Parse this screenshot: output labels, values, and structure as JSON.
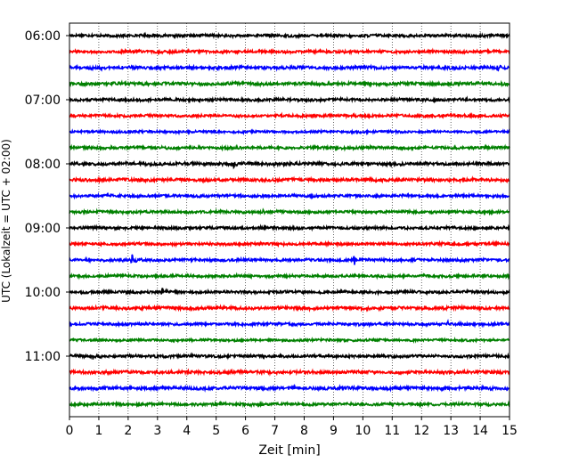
{
  "chart_data": {
    "type": "line",
    "title": "",
    "xlabel": "Zeit  [min]",
    "ylabel": "UTC (Lokalzeit = UTC + 02:00)",
    "xlim": [
      0,
      15
    ],
    "x_ticks": [
      "0",
      "1",
      "2",
      "3",
      "4",
      "5",
      "6",
      "7",
      "8",
      "9",
      "10",
      "11",
      "12",
      "13",
      "14",
      "15"
    ],
    "y_ticks": [
      "06:00",
      "07:00",
      "08:00",
      "09:00",
      "10:00",
      "11:00"
    ],
    "grid": "vertical dotted lines at each minute",
    "trace_interval_minutes": 15,
    "trace_colors": [
      "#000000",
      "#ff0000",
      "#0000ff",
      "#008000"
    ],
    "traces": [
      {
        "start": "06:00",
        "color": "#000000",
        "noise": 0.7,
        "events": [
          {
            "t": 14.1,
            "amp": 0.4
          }
        ]
      },
      {
        "start": "06:15",
        "color": "#ff0000",
        "noise": 0.7,
        "events": [
          {
            "t": 9.9,
            "amp": 0.3
          }
        ]
      },
      {
        "start": "06:30",
        "color": "#0000ff",
        "noise": 0.8,
        "events": [
          {
            "t": 14.6,
            "amp": 1.0
          }
        ]
      },
      {
        "start": "06:45",
        "color": "#008000",
        "noise": 0.8,
        "events": [
          {
            "t": 10.2,
            "amp": 0.4
          }
        ]
      },
      {
        "start": "07:00",
        "color": "#000000",
        "noise": 0.7,
        "events": [
          {
            "t": 2.2,
            "amp": 0.3
          }
        ]
      },
      {
        "start": "07:15",
        "color": "#ff0000",
        "noise": 0.7,
        "events": [
          {
            "t": 1.1,
            "amp": 0.3
          }
        ]
      },
      {
        "start": "07:30",
        "color": "#0000ff",
        "noise": 0.6,
        "events": []
      },
      {
        "start": "07:45",
        "color": "#008000",
        "noise": 0.7,
        "events": [
          {
            "t": 3.1,
            "amp": 0.5
          }
        ]
      },
      {
        "start": "08:00",
        "color": "#000000",
        "noise": 0.8,
        "events": [
          {
            "t": 5.6,
            "amp": 1.8
          }
        ]
      },
      {
        "start": "08:15",
        "color": "#ff0000",
        "noise": 0.8,
        "events": [
          {
            "t": 7.5,
            "amp": 0.4
          }
        ]
      },
      {
        "start": "08:30",
        "color": "#0000ff",
        "noise": 0.7,
        "events": []
      },
      {
        "start": "08:45",
        "color": "#008000",
        "noise": 0.7,
        "events": [
          {
            "t": 6.6,
            "amp": 0.4
          }
        ]
      },
      {
        "start": "09:00",
        "color": "#000000",
        "noise": 0.7,
        "events": [
          {
            "t": 3.2,
            "amp": 0.3
          }
        ]
      },
      {
        "start": "09:15",
        "color": "#ff0000",
        "noise": 0.7,
        "events": []
      },
      {
        "start": "09:30",
        "color": "#0000ff",
        "noise": 0.7,
        "events": [
          {
            "t": 1.75,
            "amp": 1.0
          },
          {
            "t": 2.1,
            "amp": 2.4
          },
          {
            "t": 9.7,
            "amp": 2.0
          }
        ]
      },
      {
        "start": "09:45",
        "color": "#008000",
        "noise": 0.7,
        "events": [
          {
            "t": 8.1,
            "amp": 0.3
          }
        ]
      },
      {
        "start": "10:00",
        "color": "#000000",
        "noise": 0.7,
        "events": [
          {
            "t": 1.95,
            "amp": 1.0
          },
          {
            "t": 3.1,
            "amp": 2.2
          }
        ]
      },
      {
        "start": "10:15",
        "color": "#ff0000",
        "noise": 0.8,
        "events": [
          {
            "t": 7.5,
            "amp": 0.4
          }
        ]
      },
      {
        "start": "10:30",
        "color": "#0000ff",
        "noise": 0.7,
        "events": [
          {
            "t": 12.9,
            "amp": 1.0
          }
        ]
      },
      {
        "start": "10:45",
        "color": "#008000",
        "noise": 0.6,
        "events": [
          {
            "t": 10.4,
            "amp": 0.5
          }
        ]
      },
      {
        "start": "11:00",
        "color": "#000000",
        "noise": 0.7,
        "events": [
          {
            "t": 0.8,
            "amp": 0.8
          },
          {
            "t": 6.6,
            "amp": 0.4
          }
        ]
      },
      {
        "start": "11:15",
        "color": "#ff0000",
        "noise": 0.8,
        "events": [
          {
            "t": 7.3,
            "amp": 0.3
          }
        ]
      },
      {
        "start": "11:30",
        "color": "#0000ff",
        "noise": 0.8,
        "events": [
          {
            "t": 9.2,
            "amp": 0.4
          }
        ]
      },
      {
        "start": "11:45",
        "color": "#008000",
        "noise": 0.7,
        "events": [
          {
            "t": 6.1,
            "amp": 0.3
          }
        ]
      }
    ]
  }
}
